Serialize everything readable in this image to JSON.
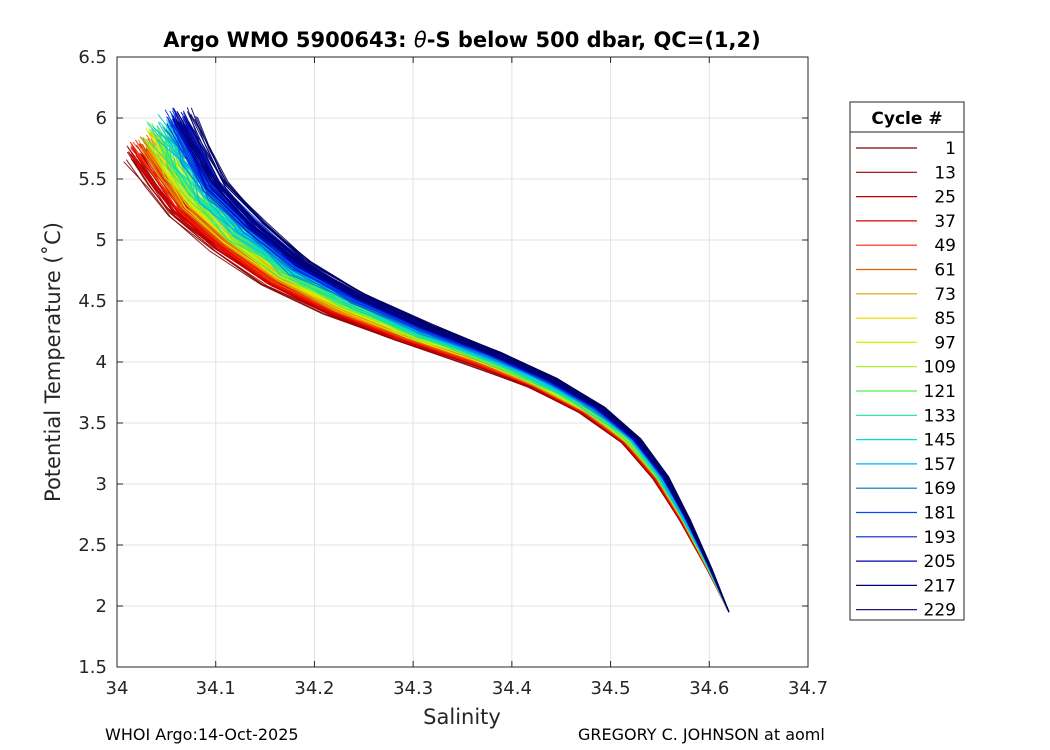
{
  "chart_data": {
    "type": "line",
    "title_prefix": "Argo WMO 5900643: ",
    "title_theta": "θ",
    "title_suffix": "-S below 500 dbar,  QC=(1,2)",
    "xlabel": "Salinity",
    "ylabel": "Potential Temperature (˚C)",
    "xlim": [
      34.0,
      34.7
    ],
    "ylim": [
      1.5,
      6.5
    ],
    "xticks": [
      34,
      34.1,
      34.2,
      34.3,
      34.4,
      34.5,
      34.6,
      34.7
    ],
    "xtick_labels": [
      "34",
      "34.1",
      "34.2",
      "34.3",
      "34.4",
      "34.5",
      "34.6",
      "34.7"
    ],
    "yticks": [
      1.5,
      2,
      2.5,
      3,
      3.5,
      4,
      4.5,
      5,
      5.5,
      6,
      6.5
    ],
    "ytick_labels": [
      "1.5",
      "2",
      "2.5",
      "3",
      "3.5",
      "4",
      "4.5",
      "5",
      "5.5",
      "6",
      "6.5"
    ],
    "grid": true,
    "legend_title": "Cycle #",
    "legend_location": "right, outside plot",
    "cycle_range": [
      1,
      229
    ],
    "legend": [
      {
        "label": "1",
        "color": "#800000"
      },
      {
        "label": "13",
        "color": "#9e0000"
      },
      {
        "label": "25",
        "color": "#c00000"
      },
      {
        "label": "37",
        "color": "#e00000"
      },
      {
        "label": "49",
        "color": "#ff2000"
      },
      {
        "label": "61",
        "color": "#e06000"
      },
      {
        "label": "73",
        "color": "#e0a000"
      },
      {
        "label": "85",
        "color": "#f0e000"
      },
      {
        "label": "97",
        "color": "#d8f000"
      },
      {
        "label": "109",
        "color": "#a0f020"
      },
      {
        "label": "121",
        "color": "#50f050"
      },
      {
        "label": "133",
        "color": "#20e090"
      },
      {
        "label": "145",
        "color": "#00e0d0"
      },
      {
        "label": "157",
        "color": "#00b0f0"
      },
      {
        "label": "169",
        "color": "#0070c0"
      },
      {
        "label": "181",
        "color": "#0050f0"
      },
      {
        "label": "193",
        "color": "#0020e0"
      },
      {
        "label": "205",
        "color": "#0000b0"
      },
      {
        "label": "217",
        "color": "#000080"
      },
      {
        "label": "229",
        "color": "#00005a"
      }
    ],
    "envelope_note": "Curves run from ~34.05 S / 5.8 °C near 500 dbar down to ~34.62 S / 1.95 °C at depth.",
    "profile_shape": {
      "deep_end": [
        34.62,
        1.95
      ],
      "points": [
        [
          34.62,
          1.95
        ],
        [
          34.6,
          2.3
        ],
        [
          34.575,
          2.7
        ],
        [
          34.55,
          3.05
        ],
        [
          34.52,
          3.35
        ],
        [
          34.48,
          3.6
        ],
        [
          34.43,
          3.82
        ],
        [
          34.37,
          4.02
        ],
        [
          34.3,
          4.22
        ],
        [
          34.23,
          4.45
        ],
        [
          34.17,
          4.7
        ],
        [
          34.12,
          5.0
        ],
        [
          34.08,
          5.3
        ],
        [
          34.06,
          5.55
        ],
        [
          34.04,
          5.8
        ]
      ]
    },
    "early_cycles": {
      "salinity_offset": -0.025,
      "temperature_offset": -0.1
    },
    "late_cycles": {
      "salinity_offset": 0.03,
      "temperature_offset": 0.25
    }
  },
  "footer": {
    "left": "WHOI Argo:14-Oct-2025",
    "right": "GREGORY C. JOHNSON at aoml"
  }
}
